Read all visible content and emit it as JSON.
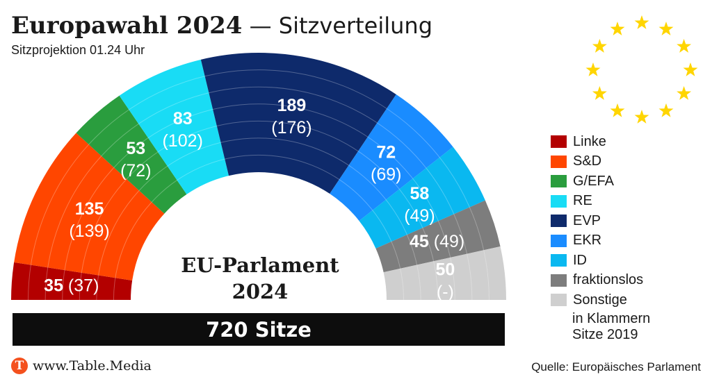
{
  "header": {
    "title_bold": "Europawahl 2024",
    "title_dash": " — ",
    "title_regular": "Sitzverteilung",
    "subtitle": "Sitzprojektion 01.24 Uhr"
  },
  "chart_data": {
    "type": "pie",
    "variant": "parliament-semicircle",
    "title": "Europawahl 2024 — Sitzverteilung",
    "subtitle": "Sitzprojektion 01.24 Uhr",
    "center_label": [
      "EU-Parlament",
      "2024"
    ],
    "total_seats": 720,
    "total_label": "720 Sitze",
    "value_description": "Sitze 2024 (in Klammern Sitze 2019)",
    "series": [
      {
        "name": "Linke",
        "label": "Linke",
        "value": 35,
        "previous": "37",
        "previous_text": "(37)",
        "color": "#b30000"
      },
      {
        "name": "S&D",
        "label": "S&D",
        "value": 135,
        "previous": "139",
        "previous_text": "(139)",
        "color": "#ff4600"
      },
      {
        "name": "G/EFA",
        "label": "G/EFA",
        "value": 53,
        "previous": "72",
        "previous_text": "(72)",
        "color": "#2a9d3e"
      },
      {
        "name": "RE",
        "label": "RE",
        "value": 83,
        "previous": "102",
        "previous_text": "(102)",
        "color": "#19dcf5"
      },
      {
        "name": "EVP",
        "label": "EVP",
        "value": 189,
        "previous": "176",
        "previous_text": "(176)",
        "color": "#0e2a6b"
      },
      {
        "name": "EKR",
        "label": "EKR",
        "value": 72,
        "previous": "69",
        "previous_text": "(69)",
        "color": "#1a8cff"
      },
      {
        "name": "ID",
        "label": "ID",
        "value": 58,
        "previous": "49",
        "previous_text": "(49)",
        "color": "#0ab8f0"
      },
      {
        "name": "fraktionslos",
        "label": "fraktionslos",
        "value": 45,
        "previous": "49",
        "previous_text": "(49)",
        "color": "#7d7d7d"
      },
      {
        "name": "Sonstige",
        "label": "Sonstige",
        "value": 50,
        "previous": "-",
        "previous_text": "(-)",
        "color": "#cfcfcf"
      }
    ],
    "legend": {
      "placement": "right",
      "note_lines": [
        "in Klammern",
        "Sitze 2019"
      ]
    }
  },
  "footer": {
    "brand_logo_letter": "T",
    "brand_text": "www.Table.Media",
    "source": "Quelle: Europäisches Parlament"
  },
  "icons": {
    "eu_flag": "eu-flag-icon",
    "brand": "table-media-logo-icon"
  },
  "colors": {
    "flag_star": "#ffd500",
    "total_bar": "#0d0d0d",
    "brand": "#f4511e"
  }
}
